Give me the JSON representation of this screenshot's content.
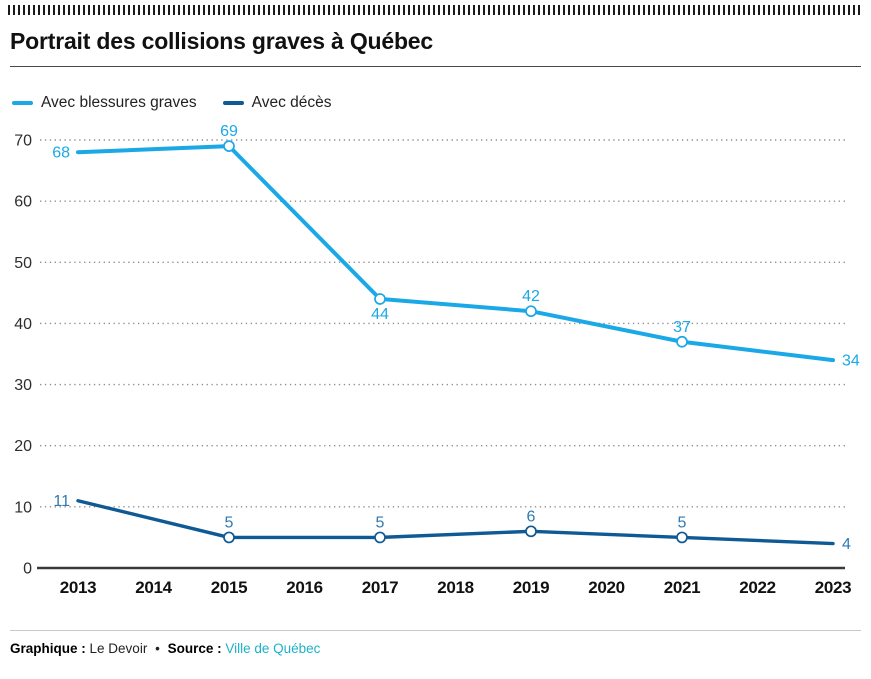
{
  "header": {
    "title": "Portrait des collisions graves à Québec"
  },
  "chart_data": {
    "type": "line",
    "title": "Portrait des collisions graves à Québec",
    "categories": [
      2013,
      2014,
      2015,
      2016,
      2017,
      2018,
      2019,
      2020,
      2021,
      2022,
      2023
    ],
    "yticks": [
      0,
      10,
      20,
      30,
      40,
      50,
      60,
      70
    ],
    "ylim": [
      0,
      70
    ],
    "grid": "horizontal-dotted",
    "legend_position": "top-left",
    "series": [
      {
        "name": "Avec blessures graves",
        "color": "#1aa8e6",
        "label_color": "#1aa8e6",
        "x": [
          2013,
          2015,
          2017,
          2019,
          2021,
          2023
        ],
        "values": [
          68,
          69,
          44,
          42,
          37,
          34
        ],
        "label_pos": [
          "left",
          "above",
          "below",
          "above",
          "above",
          "right"
        ],
        "marker_x": [
          2015,
          2017,
          2019,
          2021
        ]
      },
      {
        "name": "Avec décès",
        "color": "#0f5a94",
        "label_color": "#2f7ab2",
        "x": [
          2013,
          2015,
          2017,
          2019,
          2021,
          2023
        ],
        "values": [
          11,
          5,
          5,
          6,
          5,
          4
        ],
        "label_pos": [
          "left",
          "above",
          "above",
          "above",
          "above",
          "right"
        ],
        "marker_x": [
          2015,
          2017,
          2019,
          2021
        ]
      }
    ]
  },
  "footer": {
    "credit_label": "Graphique :",
    "credit_value": "Le Devoir",
    "separator": "•",
    "source_label": "Source :",
    "source_value": "Ville de Québec",
    "link_color": "#1cb2c9"
  }
}
